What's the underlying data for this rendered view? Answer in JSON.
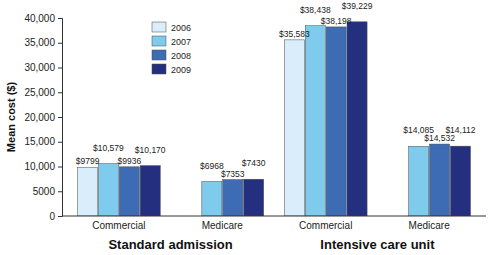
{
  "chart_data": {
    "type": "bar",
    "y_label": "Mean cost ($)",
    "groups": [
      "Standard admission",
      "Intensive care unit"
    ],
    "categories": [
      "Commercial",
      "Medicare",
      "Commercial",
      "Medicare"
    ],
    "series": [
      {
        "name": "2006",
        "color": "#d9eefa",
        "values": [
          9799,
          null,
          35583,
          null
        ],
        "value_labels": [
          "$9799",
          null,
          "$35,583",
          null
        ]
      },
      {
        "name": "2007",
        "color": "#7ecbee",
        "values": [
          10579,
          6968,
          38438,
          14085
        ],
        "value_labels": [
          "$10,579",
          "$6968",
          "$38,438",
          "$14,085"
        ]
      },
      {
        "name": "2008",
        "color": "#3d6cb5",
        "values": [
          9936,
          7353,
          38198,
          14532
        ],
        "value_labels": [
          "$9936",
          "$7353",
          "$38,198",
          "$14,532"
        ]
      },
      {
        "name": "2009",
        "color": "#24307f",
        "values": [
          10170,
          7430,
          39229,
          14112
        ],
        "value_labels": [
          "$10,170",
          "$7430",
          "$39,229",
          "$14,112"
        ]
      }
    ],
    "ylim": [
      0,
      40000
    ],
    "yticks": [
      0,
      5000,
      {
        "value": 10000,
        "label": "10,000"
      },
      {
        "value": 15000,
        "label": "15,000"
      },
      {
        "value": 20000,
        "label": "20,000"
      },
      {
        "value": 25000,
        "label": "25,000"
      },
      {
        "value": 30000,
        "label": "30,000"
      },
      {
        "value": 35000,
        "label": "35,000"
      },
      {
        "value": 40000,
        "label": "40,000"
      }
    ],
    "grid": false,
    "legend": "upper left",
    "data_labels": true
  }
}
